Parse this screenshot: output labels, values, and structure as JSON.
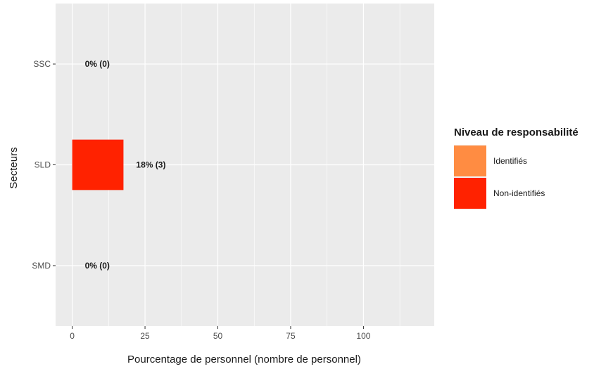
{
  "chart_data": {
    "type": "bar",
    "orientation": "horizontal",
    "title": "",
    "xlabel": "Pourcentage de personnel (nombre de personnel)",
    "ylabel": "Secteurs",
    "categories": [
      "SSC",
      "SLD",
      "SMD"
    ],
    "xlim": [
      -5.7,
      124.3
    ],
    "x_ticks": [
      0,
      25,
      50,
      75,
      100
    ],
    "x_tick_labels": [
      "0",
      "25",
      "50",
      "75",
      "100"
    ],
    "series": [
      {
        "name": "Identifiés",
        "color": "#FF8C42",
        "values": [
          0,
          0,
          0
        ]
      },
      {
        "name": "Non-identifiés",
        "color": "#FF2200",
        "values": [
          0,
          17.6,
          0
        ]
      }
    ],
    "data_labels": [
      "0% (0)",
      "18% (3)",
      "0% (0)"
    ],
    "legend": {
      "title": "Niveau de responsabilité",
      "position": "right",
      "items": [
        "Identifiés",
        "Non-identifiés"
      ]
    },
    "grid": true,
    "panel_background": "#EBEBEB",
    "grid_color": "#FFFFFF"
  }
}
